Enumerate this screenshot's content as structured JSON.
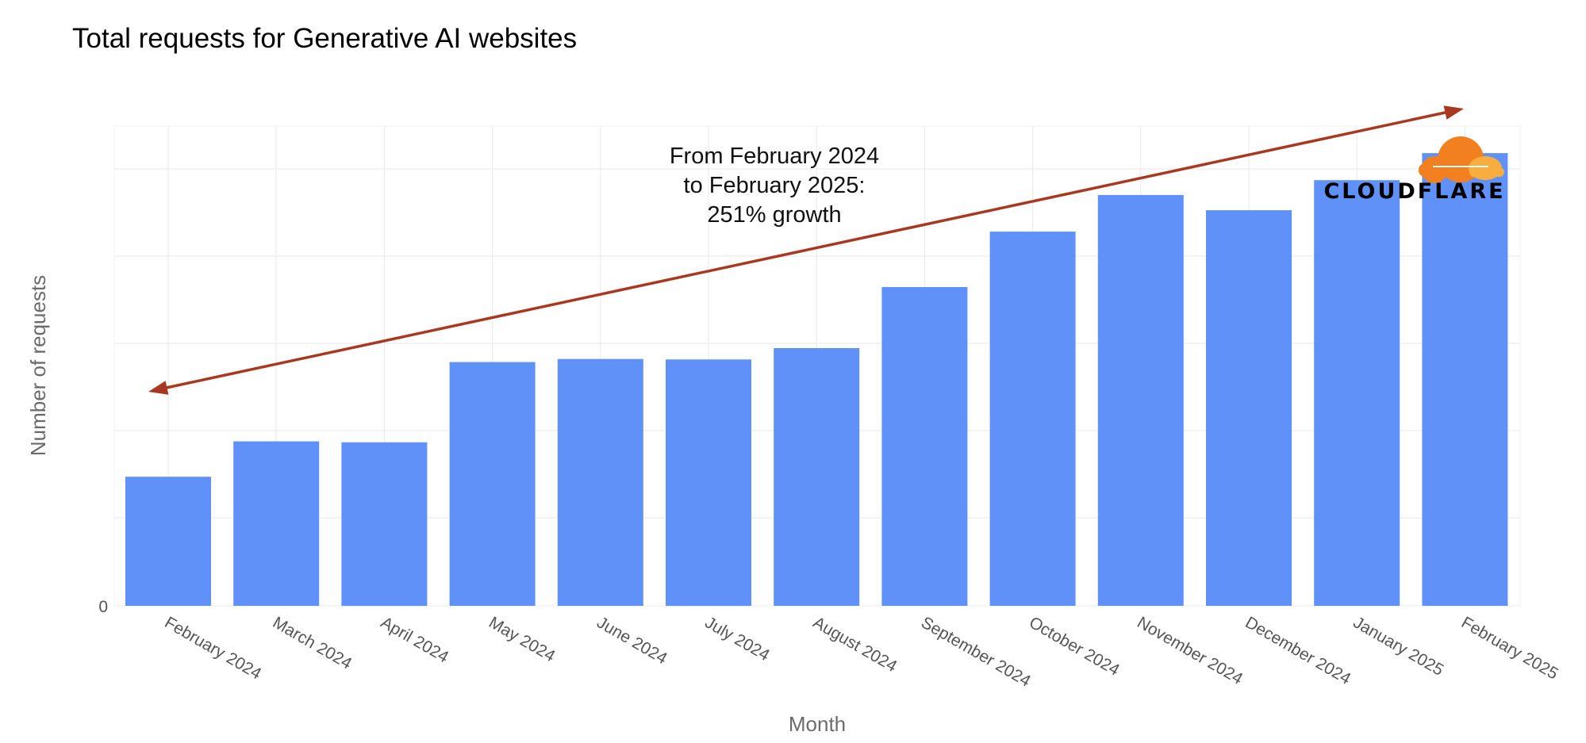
{
  "chart_data": {
    "type": "bar",
    "title": "Total requests for Generative AI websites",
    "xlabel": "Month",
    "ylabel": "Number of requests",
    "y_tick_labels": [
      "0"
    ],
    "ylim": [
      0,
      110
    ],
    "grid": true,
    "legend": "none",
    "categories": [
      "February 2024",
      "March 2024",
      "April 2024",
      "May 2024",
      "June 2024",
      "July 2024",
      "August 2024",
      "September 2024",
      "October 2024",
      "November 2024",
      "December 2024",
      "January 2025",
      "February 2025"
    ],
    "values": [
      29.6,
      37.7,
      37.5,
      55.9,
      56.6,
      56.5,
      59.1,
      73.1,
      85.8,
      94.2,
      90.7,
      97.6,
      103.8
    ],
    "bar_color": "#5f91f9",
    "annotation": {
      "lines": [
        "From February 2024",
        "to February 2025:",
        "251% growth"
      ],
      "arrow_color": "#a93820"
    }
  },
  "logo": {
    "name": "cloudflare-logo",
    "text": "CLOUDFLARE",
    "colors": [
      "#f38020",
      "#faad3f"
    ]
  }
}
